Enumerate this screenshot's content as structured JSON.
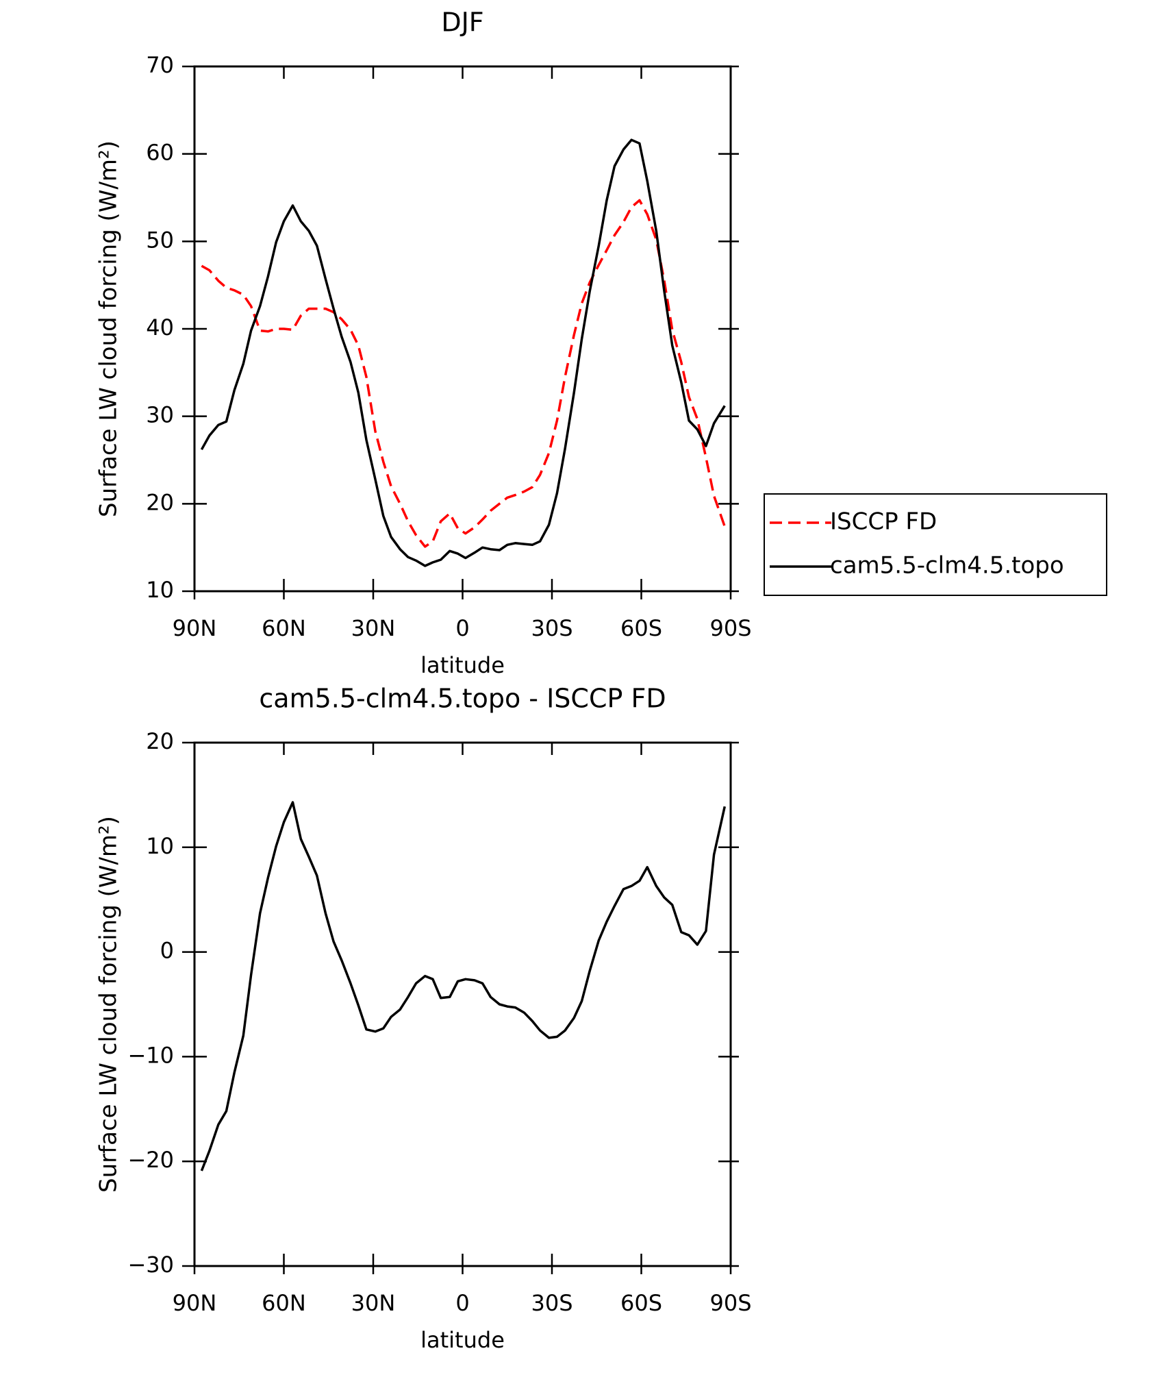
{
  "chart_data": [
    {
      "type": "line",
      "title": "DJF",
      "xlabel": "latitude",
      "ylabel": "Surface LW cloud forcing (W/m²)",
      "x": [
        87.6,
        85,
        82,
        79.3,
        76.6,
        73.6,
        71,
        68,
        65.3,
        62.6,
        60,
        57,
        54.3,
        51.6,
        48.9,
        46,
        43.3,
        40.6,
        37.6,
        35,
        32.3,
        29.3,
        26.6,
        24,
        21,
        18.3,
        15.6,
        12.6,
        10,
        7.3,
        4.3,
        1.6,
        -1,
        -4,
        -6.7,
        -9.4,
        -12.4,
        -15,
        -17.7,
        -20.7,
        -23.4,
        -26,
        -29,
        -31.7,
        -34.4,
        -37.4,
        -40,
        -42.7,
        -45.7,
        -48.4,
        -51,
        -54,
        -56.7,
        -59.4,
        -62,
        -65,
        -67.7,
        -70.4,
        -73.4,
        -76,
        -78.8,
        -81.7,
        -84.4,
        -88
      ],
      "xlim": [
        90,
        -90
      ],
      "xticks": [
        {
          "value": 90,
          "label": "90N"
        },
        {
          "value": 60,
          "label": "60N"
        },
        {
          "value": 30,
          "label": "30N"
        },
        0,
        {
          "value": -30,
          "label": "30S"
        },
        {
          "value": -60,
          "label": "60S"
        },
        {
          "value": -90,
          "label": "90S"
        }
      ],
      "ylim": [
        10,
        70
      ],
      "yticks": [
        10,
        20,
        30,
        40,
        50,
        60,
        70
      ],
      "legend": "right",
      "series": [
        {
          "name": "ISCCP FD",
          "color": "#ff0000",
          "dash": "dashed",
          "values": [
            47.2,
            46.7,
            45.5,
            44.7,
            44.4,
            43.9,
            42.6,
            39.8,
            39.7,
            40,
            40,
            39.9,
            41.5,
            42.3,
            42.3,
            42.3,
            41.9,
            41.1,
            39.9,
            38.1,
            34.5,
            28.3,
            24.8,
            22,
            20,
            18,
            16.4,
            15.1,
            15.7,
            18,
            18.9,
            17.2,
            16.6,
            17.3,
            18.2,
            19.2,
            20,
            20.7,
            21,
            21.4,
            21.9,
            23.3,
            25.8,
            29.5,
            34.5,
            39.3,
            42.9,
            45.3,
            47.3,
            49,
            50.7,
            52.2,
            53.9,
            54.7,
            53.1,
            50.2,
            45.5,
            39.9,
            36.2,
            32.2,
            29.7,
            25.3,
            20.9,
            17.4
          ]
        },
        {
          "name": "cam5.5-clm4.5.topo",
          "color": "#000000",
          "dash": "solid",
          "values": [
            26.2,
            27.8,
            29,
            29.4,
            33,
            36,
            39.8,
            42.6,
            46,
            49.9,
            52.3,
            54.1,
            52.3,
            51.2,
            49.5,
            45.7,
            42.3,
            39.1,
            36.2,
            32.7,
            27.3,
            22.8,
            18.6,
            16.2,
            14.8,
            13.9,
            13.5,
            12.9,
            13.3,
            13.6,
            14.6,
            14.3,
            13.8,
            14.4,
            15,
            14.8,
            14.7,
            15.3,
            15.5,
            15.4,
            15.3,
            15.7,
            17.6,
            21.2,
            26.3,
            32.7,
            38.8,
            44.3,
            49.5,
            54.7,
            58.6,
            60.5,
            61.6,
            61.2,
            56.9,
            51.2,
            44.3,
            38.1,
            33.9,
            29.5,
            28.5,
            26.6,
            29.2,
            31.2
          ]
        }
      ]
    },
    {
      "type": "line",
      "title": "cam5.5-clm4.5.topo - ISCCP FD",
      "xlabel": "latitude",
      "ylabel": "Surface LW cloud forcing (W/m²)",
      "x": [
        87.6,
        85,
        82,
        79.3,
        76.6,
        73.6,
        71,
        68,
        65.3,
        62.6,
        60,
        57,
        54.3,
        51.6,
        48.9,
        46,
        43.3,
        40.6,
        37.6,
        35,
        32.3,
        29.3,
        26.6,
        24,
        21,
        18.3,
        15.6,
        12.6,
        10,
        7.3,
        4.3,
        1.6,
        -1,
        -4,
        -6.7,
        -9.4,
        -12.4,
        -15,
        -17.7,
        -20.7,
        -23.4,
        -26,
        -29,
        -31.7,
        -34.4,
        -37.4,
        -40,
        -42.7,
        -45.7,
        -48.4,
        -51,
        -54,
        -56.7,
        -59.4,
        -62,
        -65,
        -67.7,
        -70.4,
        -73.4,
        -76,
        -78.8,
        -81.7,
        -84.4,
        -88
      ],
      "xlim": [
        90,
        -90
      ],
      "xticks": [
        {
          "value": 90,
          "label": "90N"
        },
        {
          "value": 60,
          "label": "60N"
        },
        {
          "value": 30,
          "label": "30N"
        },
        0,
        {
          "value": -30,
          "label": "30S"
        },
        {
          "value": -60,
          "label": "60S"
        },
        {
          "value": -90,
          "label": "90S"
        }
      ],
      "ylim": [
        -30,
        20
      ],
      "yticks": [
        {
          "value": -30,
          "label": "−30"
        },
        {
          "value": -20,
          "label": "−20"
        },
        {
          "value": -10,
          "label": "−10"
        },
        0,
        10,
        20
      ],
      "series": [
        {
          "color": "#000000",
          "dash": "solid",
          "values": [
            -20.9,
            -19,
            -16.5,
            -15.2,
            -11.5,
            -8,
            -2.2,
            3.7,
            7.1,
            10.1,
            12.4,
            14.3,
            10.8,
            9.1,
            7.3,
            3.7,
            1,
            -0.8,
            -3,
            -5.1,
            -7.4,
            -7.6,
            -7.3,
            -6.2,
            -5.5,
            -4.3,
            -3,
            -2.3,
            -2.6,
            -4.4,
            -4.3,
            -2.8,
            -2.6,
            -2.7,
            -3,
            -4.3,
            -5,
            -5.2,
            -5.3,
            -5.8,
            -6.6,
            -7.5,
            -8.2,
            -8.1,
            -7.5,
            -6.3,
            -4.7,
            -1.8,
            1.1,
            2.9,
            4.4,
            6,
            6.3,
            6.8,
            8.1,
            6.3,
            5.2,
            4.5,
            1.9,
            1.6,
            0.7,
            2,
            9.3,
            13.9
          ]
        }
      ]
    }
  ]
}
